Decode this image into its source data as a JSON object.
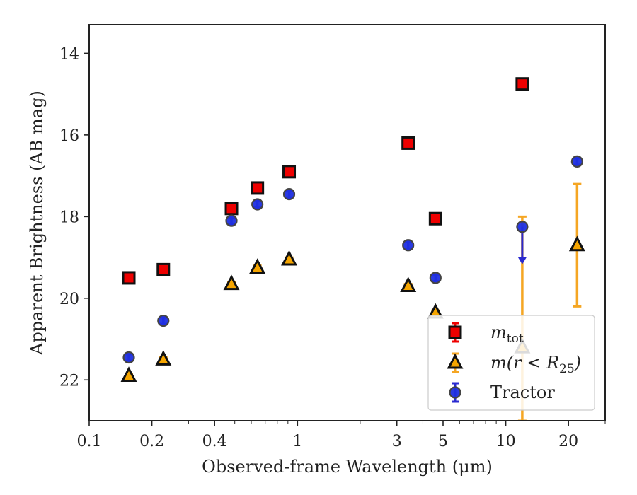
{
  "chart_data": {
    "type": "scatter",
    "xlabel": "Observed-frame Wavelength (μm)",
    "ylabel": "Apparent Brightness (AB mag)",
    "x_scale": "log",
    "xlim": [
      0.1,
      30
    ],
    "ylim": [
      23.0,
      13.3
    ],
    "y_inverted": true,
    "x_ticks": [
      0.1,
      0.2,
      0.4,
      1,
      3,
      5,
      10,
      20
    ],
    "x_tick_labels": [
      "0.1",
      "0.2",
      "0.4",
      "1",
      "3",
      "5",
      "10",
      "20"
    ],
    "y_ticks": [
      14,
      16,
      18,
      20,
      22
    ],
    "y_tick_labels": [
      "14",
      "16",
      "18",
      "20",
      "22"
    ],
    "grid": false,
    "legend_position": "lower-right",
    "series": [
      {
        "name": "m_tot",
        "legend_label": {
          "base": "m",
          "sub": "tot"
        },
        "marker": "square",
        "color": "#ee0000",
        "edge_color": "#111111",
        "errorbar_color": "#ee0000",
        "points": [
          {
            "x": 0.155,
            "y": 19.5,
            "err": 0.05
          },
          {
            "x": 0.227,
            "y": 19.3,
            "err": 0.05
          },
          {
            "x": 0.482,
            "y": 17.8,
            "err": 0.05
          },
          {
            "x": 0.642,
            "y": 17.3,
            "err": 0.05
          },
          {
            "x": 0.912,
            "y": 16.9,
            "err": 0.05
          },
          {
            "x": 3.4,
            "y": 16.2,
            "err": 0.05
          },
          {
            "x": 4.6,
            "y": 18.05,
            "err": 0.05
          },
          {
            "x": 12.0,
            "y": 14.75,
            "err": 0.05
          }
        ]
      },
      {
        "name": "m(r < R25)",
        "legend_label": {
          "base": "m(r < R",
          "sub": "25",
          "tail": ")"
        },
        "marker": "triangle",
        "color": "#f5a500",
        "edge_color": "#111111",
        "errorbar_color": "#f5a623",
        "points": [
          {
            "x": 0.155,
            "y": 21.9,
            "err": 0.05
          },
          {
            "x": 0.227,
            "y": 21.5,
            "err": 0.05
          },
          {
            "x": 0.482,
            "y": 19.65,
            "err": 0.05
          },
          {
            "x": 0.642,
            "y": 19.25,
            "err": 0.05
          },
          {
            "x": 0.912,
            "y": 19.05,
            "err": 0.05
          },
          {
            "x": 3.4,
            "y": 19.7,
            "err": 0.05
          },
          {
            "x": 4.6,
            "y": 20.35,
            "err": 0.05
          },
          {
            "x": 12.0,
            "y": 21.2,
            "err_low": 3.2,
            "err_high": 1.8
          },
          {
            "x": 22.0,
            "y": 18.7,
            "err_low": 1.5,
            "err_high": 1.5
          }
        ]
      },
      {
        "name": "Tractor",
        "legend_label": {
          "base": "Tractor"
        },
        "marker": "circle",
        "color": "#1f2fe0",
        "edge_color": "#444444",
        "errorbar_color": "#2a2ad0",
        "points": [
          {
            "x": 0.155,
            "y": 21.45,
            "err": 0.08
          },
          {
            "x": 0.227,
            "y": 20.55,
            "err": 0.08
          },
          {
            "x": 0.482,
            "y": 18.1,
            "err": 0.08
          },
          {
            "x": 0.642,
            "y": 17.7,
            "err": 0.08
          },
          {
            "x": 0.912,
            "y": 17.45,
            "err": 0.08
          },
          {
            "x": 3.4,
            "y": 18.7,
            "err": 0.08
          },
          {
            "x": 4.6,
            "y": 19.5,
            "err": 0.08
          },
          {
            "x": 12.0,
            "y": 18.25,
            "upper_limit": true,
            "limit_to": 19.1
          },
          {
            "x": 22.0,
            "y": 16.65,
            "err": 0.08
          }
        ]
      }
    ]
  }
}
